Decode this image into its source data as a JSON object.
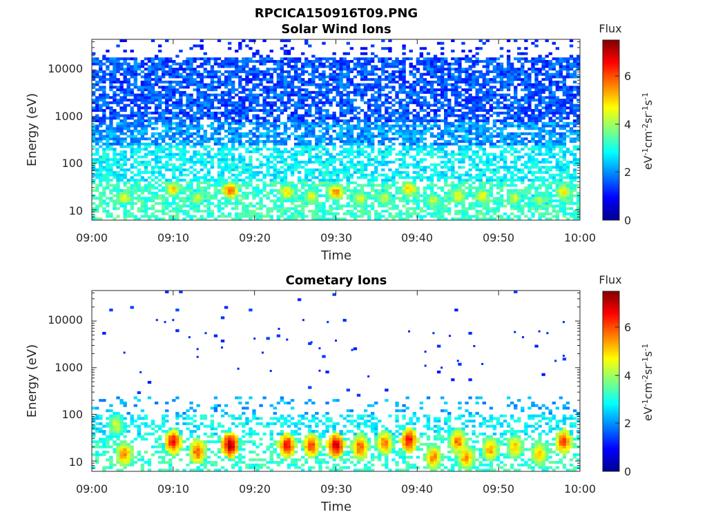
{
  "figure_title": "RPCICA150916T09.PNG",
  "chart_data": [
    {
      "type": "heatmap",
      "title": "Solar Wind Ions",
      "xlabel": "Time",
      "ylabel": "Energy (eV)",
      "x_ticks": [
        "09:00",
        "09:10",
        "09:20",
        "09:30",
        "09:40",
        "09:50",
        "10:00"
      ],
      "x_range": [
        "09:00",
        "10:00"
      ],
      "y_scale": "log",
      "y_ticks": [
        "10",
        "100",
        "1000",
        "10000"
      ],
      "y_range": [
        6,
        45000
      ],
      "colorbar": {
        "title": "Flux",
        "label": "eV-1cm-2sr-1s-1",
        "ticks": [
          "0",
          "2",
          "4",
          "6"
        ],
        "range": [
          0,
          7.5
        ],
        "colormap": "jet"
      },
      "description": "Broad low-to-moderate flux (~1-2) across 100 eV-30 keV, flux ~2.5-3.5 at 10-100 eV, with intense patches (~5-7) near 20-30 eV",
      "peaks": [
        {
          "time": "09:04",
          "energy": 18,
          "flux": 4.6
        },
        {
          "time": "09:10",
          "energy": 28,
          "flux": 5.0
        },
        {
          "time": "09:13",
          "energy": 18,
          "flux": 4.4
        },
        {
          "time": "09:17",
          "energy": 26,
          "flux": 6.0
        },
        {
          "time": "09:24",
          "energy": 24,
          "flux": 5.0
        },
        {
          "time": "09:27",
          "energy": 20,
          "flux": 4.6
        },
        {
          "time": "09:30",
          "energy": 24,
          "flux": 5.6
        },
        {
          "time": "09:33",
          "energy": 18,
          "flux": 4.6
        },
        {
          "time": "09:36",
          "energy": 18,
          "flux": 4.4
        },
        {
          "time": "09:39",
          "energy": 28,
          "flux": 5.2
        },
        {
          "time": "09:42",
          "energy": 16,
          "flux": 4.4
        },
        {
          "time": "09:45",
          "energy": 20,
          "flux": 4.8
        },
        {
          "time": "09:48",
          "energy": 20,
          "flux": 4.8
        },
        {
          "time": "09:52",
          "energy": 18,
          "flux": 4.4
        },
        {
          "time": "09:55",
          "energy": 16,
          "flux": 4.2
        },
        {
          "time": "09:58",
          "energy": 24,
          "flux": 5.0
        }
      ]
    },
    {
      "type": "heatmap",
      "title": "Cometary Ions",
      "xlabel": "Time",
      "ylabel": "Energy (eV)",
      "x_ticks": [
        "09:00",
        "09:10",
        "09:20",
        "09:30",
        "09:40",
        "09:50",
        "10:00"
      ],
      "x_range": [
        "09:00",
        "10:00"
      ],
      "y_scale": "log",
      "y_ticks": [
        "10",
        "100",
        "1000",
        "10000"
      ],
      "y_range": [
        6,
        45000
      ],
      "colorbar": {
        "title": "Flux",
        "label": "eV-1cm-2sr-1s-1",
        "ticks": [
          "0",
          "2",
          "4",
          "6"
        ],
        "range": [
          0,
          7.5
        ],
        "colormap": "jet"
      },
      "description": "Sparse counts above 200 eV; flux ~2-3.5 between 30-150 eV; intense bursts (~5.5-7.2) concentrated at 8-35 eV",
      "peaks": [
        {
          "time": "09:03",
          "energy": 60,
          "flux": 4.4
        },
        {
          "time": "09:04",
          "energy": 14,
          "flux": 5.6
        },
        {
          "time": "09:10",
          "energy": 26,
          "flux": 6.6
        },
        {
          "time": "09:13",
          "energy": 16,
          "flux": 6.0
        },
        {
          "time": "09:17",
          "energy": 22,
          "flux": 7.2
        },
        {
          "time": "09:24",
          "energy": 22,
          "flux": 6.6
        },
        {
          "time": "09:27",
          "energy": 22,
          "flux": 6.2
        },
        {
          "time": "09:30",
          "energy": 22,
          "flux": 7.0
        },
        {
          "time": "09:33",
          "energy": 20,
          "flux": 6.0
        },
        {
          "time": "09:36",
          "energy": 24,
          "flux": 5.8
        },
        {
          "time": "09:39",
          "energy": 28,
          "flux": 6.6
        },
        {
          "time": "09:42",
          "energy": 12,
          "flux": 5.6
        },
        {
          "time": "09:45",
          "energy": 26,
          "flux": 5.8
        },
        {
          "time": "09:46",
          "energy": 12,
          "flux": 5.6
        },
        {
          "time": "09:49",
          "energy": 18,
          "flux": 5.4
        },
        {
          "time": "09:52",
          "energy": 20,
          "flux": 5.2
        },
        {
          "time": "09:55",
          "energy": 14,
          "flux": 5.2
        },
        {
          "time": "09:58",
          "energy": 26,
          "flux": 6.2
        }
      ],
      "sparse_points": [
        {
          "time": "09:04",
          "energy": 2100
        },
        {
          "time": "09:06",
          "energy": 800
        },
        {
          "time": "09:08",
          "energy": 10500
        },
        {
          "time": "09:09",
          "energy": 9500
        },
        {
          "time": "09:10",
          "energy": 10500
        },
        {
          "time": "09:12",
          "energy": 4500
        },
        {
          "time": "09:13",
          "energy": 2500
        },
        {
          "time": "09:13",
          "energy": 1700
        },
        {
          "time": "09:14",
          "energy": 5500
        },
        {
          "time": "09:16",
          "energy": 2700
        },
        {
          "time": "09:18",
          "energy": 950
        },
        {
          "time": "09:20",
          "energy": 4200
        },
        {
          "time": "09:21",
          "energy": 2100
        },
        {
          "time": "09:22",
          "energy": 850
        },
        {
          "time": "09:23",
          "energy": 6800
        },
        {
          "time": "09:24",
          "energy": 4000
        },
        {
          "time": "09:26",
          "energy": 10500
        },
        {
          "time": "09:27",
          "energy": 3500
        },
        {
          "time": "09:28",
          "energy": 2600
        },
        {
          "time": "09:28",
          "energy": 860
        },
        {
          "time": "09:29",
          "energy": 9500
        },
        {
          "time": "09:30",
          "energy": 3800
        },
        {
          "time": "09:31",
          "energy": 10500
        },
        {
          "time": "09:32",
          "energy": 2400
        },
        {
          "time": "09:34",
          "energy": 650
        },
        {
          "time": "09:39",
          "energy": 6000
        },
        {
          "time": "09:41",
          "energy": 2200
        },
        {
          "time": "09:41",
          "energy": 1100
        },
        {
          "time": "09:42",
          "energy": 5500
        },
        {
          "time": "09:43",
          "energy": 1000
        },
        {
          "time": "09:44",
          "energy": 4800
        },
        {
          "time": "09:45",
          "energy": 1400
        },
        {
          "time": "09:47",
          "energy": 2900
        },
        {
          "time": "09:48",
          "energy": 1200
        },
        {
          "time": "09:52",
          "energy": 5800
        },
        {
          "time": "09:53",
          "energy": 4500
        },
        {
          "time": "09:55",
          "energy": 6000
        },
        {
          "time": "09:56",
          "energy": 5500
        },
        {
          "time": "09:57",
          "energy": 1400
        },
        {
          "time": "09:58",
          "energy": 9500
        },
        {
          "time": "09:58",
          "energy": 1800
        }
      ]
    }
  ]
}
